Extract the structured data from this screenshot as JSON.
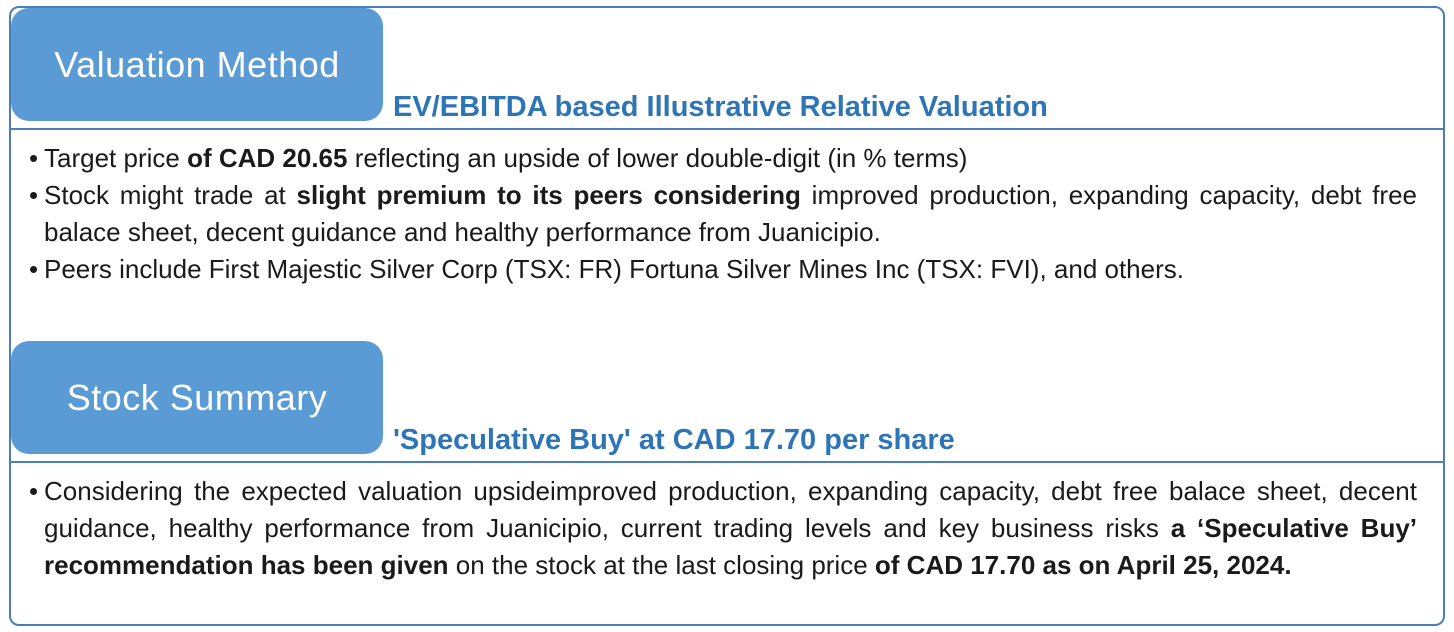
{
  "accent_color": "#5b9bd5",
  "headline_color": "#2e75b6",
  "sections": [
    {
      "tab_label": "Valuation Method",
      "headline": "EV/EBITDA based Illustrative Relative Valuation",
      "bullets": [
        [
          {
            "text": "Target price ",
            "bold": false
          },
          {
            "text": "of CAD 20.65",
            "bold": true
          },
          {
            "text": " reflecting an upside of lower double-digit (in % terms)",
            "bold": false
          }
        ],
        [
          {
            "text": "Stock might trade at ",
            "bold": false
          },
          {
            "text": "slight premium to its peers considering",
            "bold": true
          },
          {
            "text": " improved production, expanding capacity, debt free balace sheet, decent guidance and healthy performance from Juanicipio.",
            "bold": false
          }
        ],
        [
          {
            "text": "Peers include First Majestic Silver Corp (TSX: FR) Fortuna Silver Mines Inc (TSX: FVI), and others.",
            "bold": false
          }
        ]
      ]
    },
    {
      "tab_label": "Stock Summary",
      "headline": "'Speculative Buy' at CAD 17.70 per share",
      "bullets": [
        [
          {
            "text": "Considering the expected valuation upsideimproved production, expanding capacity, debt free balace sheet, decent guidance, healthy performance from Juanicipio, current trading levels and key business risks ",
            "bold": false
          },
          {
            "text": "a ‘Speculative Buy’ recommendation has been given",
            "bold": true
          },
          {
            "text": " on the stock at the last closing price ",
            "bold": false
          },
          {
            "text": "of CAD 17.70 as on April 25, 2024.",
            "bold": true
          }
        ]
      ]
    }
  ]
}
